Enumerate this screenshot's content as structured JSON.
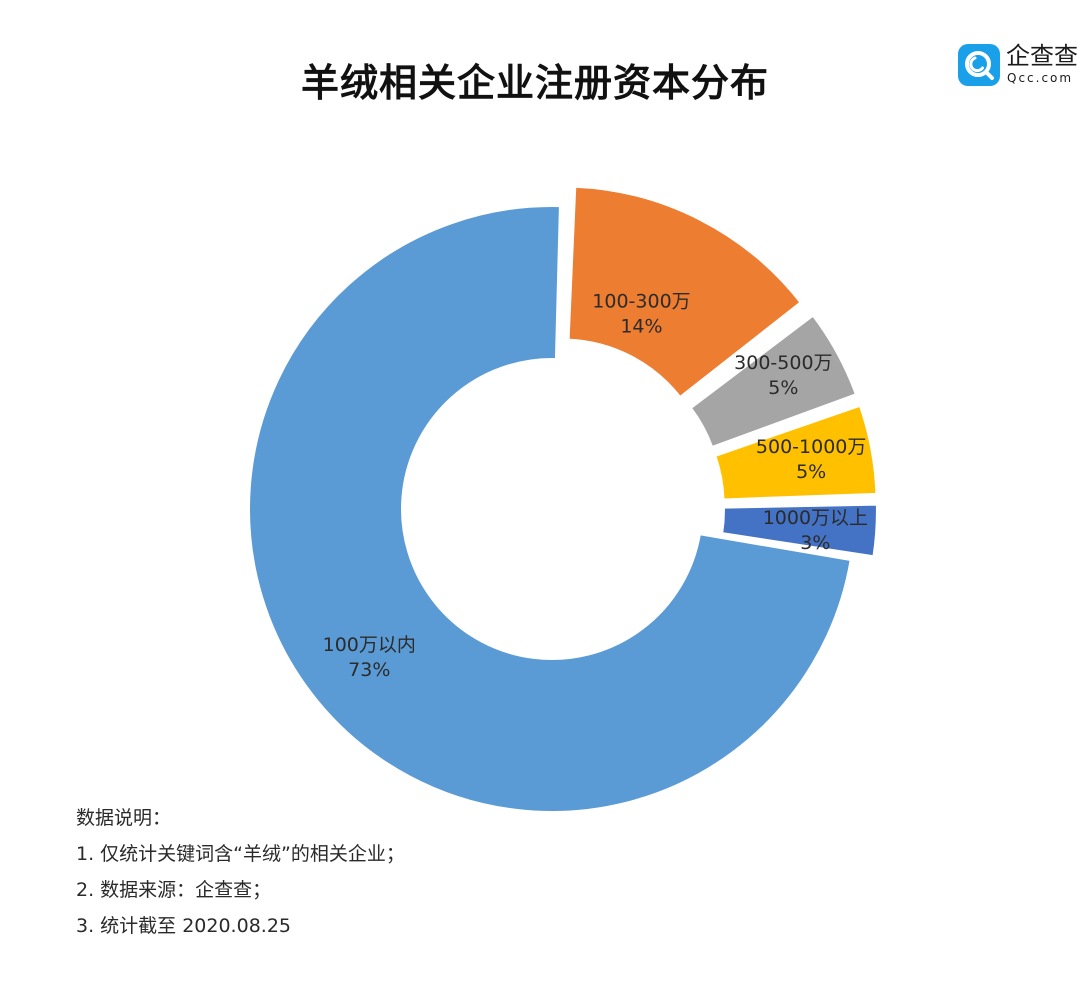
{
  "title": "羊绒相关企业注册资本分布",
  "logo": {
    "name": "企查查",
    "domain": "Qcc.com"
  },
  "chart_data": {
    "type": "pie",
    "title": "羊绒相关企业注册资本分布",
    "variant": "donut",
    "slices": [
      {
        "label": "100-300万",
        "value": 14,
        "display": "14%",
        "color": "#ed7d31"
      },
      {
        "label": "300-500万",
        "value": 5,
        "display": "5%",
        "color": "#a5a5a5"
      },
      {
        "label": "500-1000万",
        "value": 5,
        "display": "5%",
        "color": "#ffc000"
      },
      {
        "label": "1000万以上",
        "value": 3,
        "display": "3%",
        "color": "#4472c4"
      },
      {
        "label": "100万以内",
        "value": 73,
        "display": "73%",
        "color": "#5b9bd5"
      }
    ],
    "legend": "none"
  },
  "notes": {
    "heading": "数据说明：",
    "items": [
      "1. 仅统计关键词含“羊绒”的相关企业；",
      "2. 数据来源：企查查；",
      "3. 统计截至 2020.08.25"
    ]
  }
}
